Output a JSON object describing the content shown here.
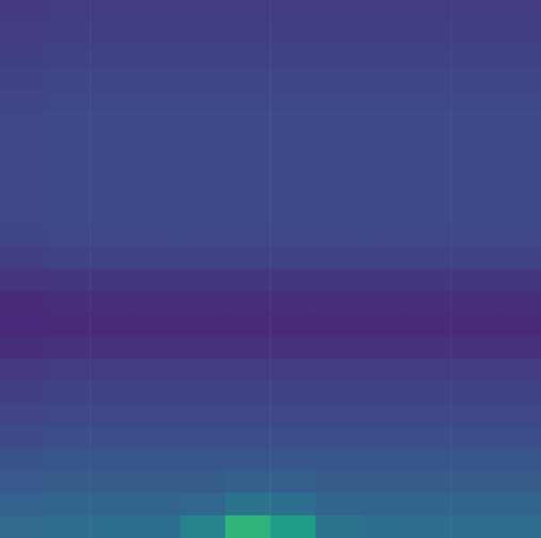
{
  "chart_data": {
    "type": "heatmap",
    "tick_labels": false,
    "grid": false,
    "zlim": [
      0,
      1
    ],
    "cells": [
      [
        0.17,
        0.18,
        0.18,
        0.18,
        0.18,
        0.18,
        0.18,
        0.18,
        0.18,
        0.18,
        0.18,
        0.18
      ],
      [
        0.18,
        0.19,
        0.19,
        0.19,
        0.19,
        0.19,
        0.19,
        0.19,
        0.19,
        0.19,
        0.19,
        0.19
      ],
      [
        0.19,
        0.2,
        0.2,
        0.2,
        0.2,
        0.2,
        0.2,
        0.2,
        0.2,
        0.2,
        0.2,
        0.2
      ],
      [
        0.2,
        0.21,
        0.21,
        0.21,
        0.21,
        0.21,
        0.21,
        0.21,
        0.21,
        0.21,
        0.21,
        0.21
      ],
      [
        0.21,
        0.22,
        0.22,
        0.22,
        0.22,
        0.22,
        0.22,
        0.22,
        0.22,
        0.22,
        0.22,
        0.22
      ],
      [
        0.22,
        0.23,
        0.23,
        0.23,
        0.23,
        0.23,
        0.23,
        0.23,
        0.23,
        0.23,
        0.23,
        0.23
      ],
      [
        0.22,
        0.23,
        0.23,
        0.23,
        0.23,
        0.23,
        0.23,
        0.23,
        0.23,
        0.23,
        0.23,
        0.23
      ],
      [
        0.22,
        0.23,
        0.23,
        0.23,
        0.23,
        0.23,
        0.23,
        0.23,
        0.23,
        0.23,
        0.23,
        0.23
      ],
      [
        0.22,
        0.23,
        0.23,
        0.23,
        0.23,
        0.23,
        0.23,
        0.23,
        0.23,
        0.23,
        0.23,
        0.23
      ],
      [
        0.22,
        0.23,
        0.23,
        0.23,
        0.23,
        0.23,
        0.23,
        0.23,
        0.23,
        0.23,
        0.23,
        0.23
      ],
      [
        0.21,
        0.22,
        0.22,
        0.22,
        0.22,
        0.22,
        0.22,
        0.22,
        0.22,
        0.22,
        0.22,
        0.22
      ],
      [
        0.19,
        0.2,
        0.2,
        0.2,
        0.2,
        0.2,
        0.2,
        0.2,
        0.2,
        0.2,
        0.2,
        0.2
      ],
      [
        0.15,
        0.16,
        0.16,
        0.16,
        0.16,
        0.16,
        0.16,
        0.16,
        0.16,
        0.16,
        0.16,
        0.16
      ],
      [
        0.12,
        0.13,
        0.13,
        0.13,
        0.13,
        0.13,
        0.13,
        0.13,
        0.13,
        0.13,
        0.13,
        0.13
      ],
      [
        0.11,
        0.12,
        0.12,
        0.12,
        0.12,
        0.12,
        0.12,
        0.12,
        0.12,
        0.12,
        0.12,
        0.12
      ],
      [
        0.13,
        0.14,
        0.14,
        0.14,
        0.14,
        0.14,
        0.14,
        0.14,
        0.14,
        0.14,
        0.14,
        0.14
      ],
      [
        0.17,
        0.18,
        0.18,
        0.18,
        0.18,
        0.18,
        0.18,
        0.18,
        0.18,
        0.18,
        0.18,
        0.18
      ],
      [
        0.19,
        0.2,
        0.2,
        0.2,
        0.2,
        0.2,
        0.2,
        0.2,
        0.2,
        0.2,
        0.2,
        0.2
      ],
      [
        0.21,
        0.22,
        0.22,
        0.22,
        0.22,
        0.22,
        0.22,
        0.22,
        0.22,
        0.22,
        0.22,
        0.22
      ],
      [
        0.23,
        0.24,
        0.24,
        0.24,
        0.24,
        0.24,
        0.24,
        0.24,
        0.24,
        0.24,
        0.24,
        0.24
      ],
      [
        0.26,
        0.27,
        0.27,
        0.27,
        0.27,
        0.27,
        0.27,
        0.27,
        0.27,
        0.27,
        0.27,
        0.27
      ],
      [
        0.28,
        0.29,
        0.29,
        0.29,
        0.29,
        0.3,
        0.3,
        0.29,
        0.29,
        0.29,
        0.29,
        0.29
      ],
      [
        0.31,
        0.32,
        0.32,
        0.32,
        0.33,
        0.38,
        0.36,
        0.32,
        0.32,
        0.32,
        0.32,
        0.32
      ],
      [
        0.34,
        0.35,
        0.36,
        0.36,
        0.45,
        0.65,
        0.55,
        0.38,
        0.36,
        0.35,
        0.35,
        0.35
      ]
    ]
  }
}
